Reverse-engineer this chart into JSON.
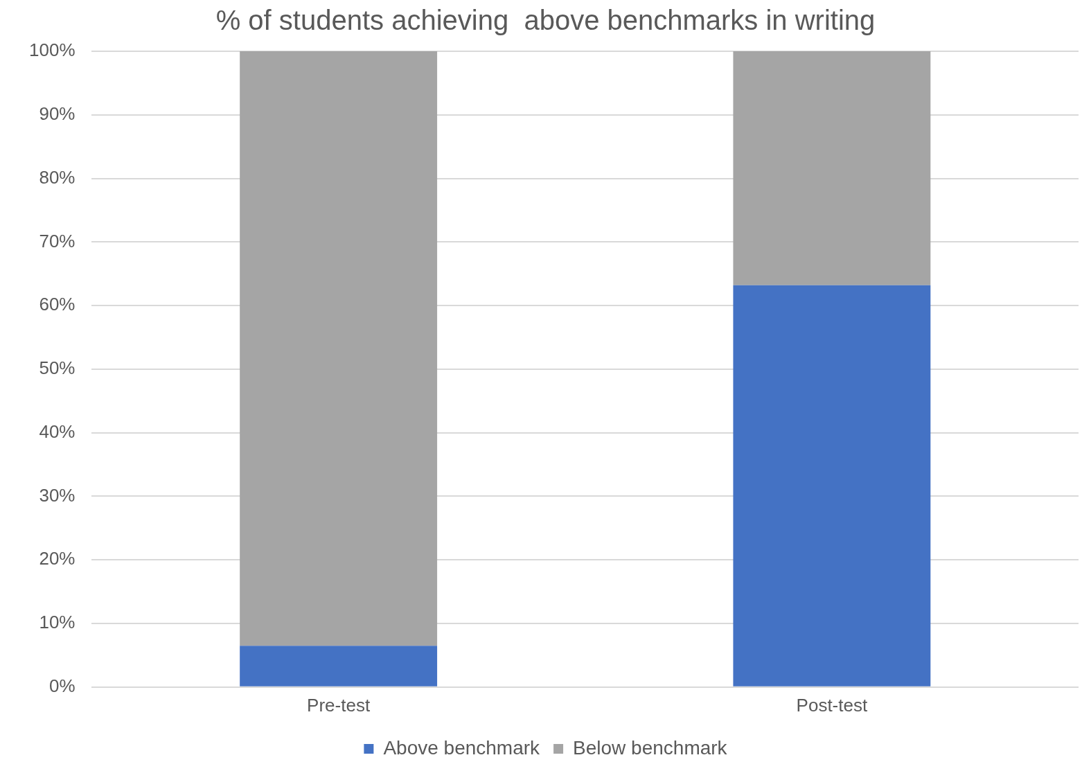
{
  "chart_data": {
    "type": "bar",
    "title": "% of students achieving  above benchmarks in writing",
    "categories": [
      "Pre-test",
      "Post-test"
    ],
    "series": [
      {
        "name": "Above benchmark",
        "color": "#4472c4",
        "values": [
          6.5,
          63.2
        ]
      },
      {
        "name": "Below benchmark",
        "color": "#a5a5a5",
        "values": [
          93.5,
          36.8
        ]
      }
    ],
    "stacked": true,
    "ylim": [
      0,
      100
    ],
    "yticks": [
      {
        "value": 0,
        "label": "0%"
      },
      {
        "value": 10,
        "label": "10%"
      },
      {
        "value": 20,
        "label": "20%"
      },
      {
        "value": 30,
        "label": "30%"
      },
      {
        "value": 40,
        "label": "40%"
      },
      {
        "value": 50,
        "label": "50%"
      },
      {
        "value": 60,
        "label": "60%"
      },
      {
        "value": 70,
        "label": "70%"
      },
      {
        "value": 80,
        "label": "80%"
      },
      {
        "value": 90,
        "label": "90%"
      },
      {
        "value": 100,
        "label": "100%"
      }
    ],
    "grid": "y",
    "legend": "bottom"
  }
}
